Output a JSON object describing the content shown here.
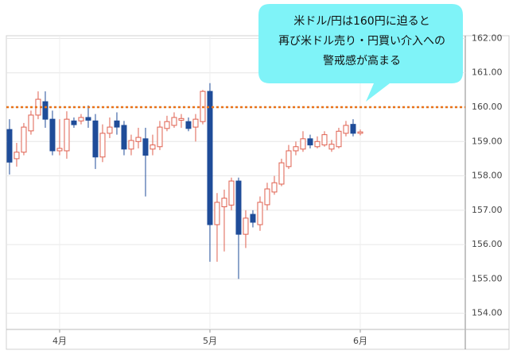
{
  "chart_data": {
    "type": "candlestick",
    "annotation": [
      "米ドル/円は160円に迫ると",
      "再び米ドル売り・円買い介入への",
      "警戒感が高まる"
    ],
    "open": [
      159.35,
      158.5,
      158.69,
      159.31,
      159.77,
      160.16,
      159.65,
      158.73,
      158.73,
      159.6,
      159.6,
      159.7,
      159.6,
      158.55,
      159.24,
      159.6,
      159.47,
      158.78,
      159.0,
      159.08,
      158.78,
      158.85,
      159.38,
      159.47,
      159.62,
      159.58,
      159.42,
      159.58,
      160.46,
      156.58,
      157.1,
      157.15,
      157.85,
      156.3,
      156.88,
      156.58,
      157.16,
      157.53,
      157.76,
      158.27,
      158.73,
      158.78,
      159.08,
      158.85,
      158.9,
      158.78,
      158.85,
      159.24,
      159.5,
      159.24
    ],
    "high": [
      159.65,
      158.96,
      159.54,
      159.9,
      160.46,
      160.46,
      159.9,
      159.65,
      159.88,
      159.7,
      159.8,
      160.05,
      159.8,
      159.5,
      159.7,
      159.85,
      159.6,
      159.2,
      159.4,
      159.4,
      159.2,
      159.6,
      159.75,
      159.85,
      159.8,
      159.7,
      159.8,
      160.5,
      160.7,
      157.5,
      157.6,
      157.95,
      157.95,
      157.0,
      157.0,
      157.4,
      157.8,
      158.0,
      158.5,
      158.9,
      159.0,
      159.3,
      159.2,
      159.15,
      159.3,
      159.05,
      159.4,
      159.6,
      159.65,
      159.35
    ],
    "low": [
      158.04,
      158.27,
      158.6,
      159.2,
      159.65,
      159.4,
      158.6,
      158.6,
      158.5,
      159.4,
      159.5,
      159.4,
      158.2,
      158.4,
      159.1,
      159.2,
      158.6,
      158.6,
      158.8,
      157.4,
      158.6,
      158.75,
      159.3,
      159.4,
      159.4,
      159.3,
      159.0,
      159.5,
      155.5,
      155.5,
      155.8,
      157.0,
      155.0,
      155.9,
      156.5,
      156.4,
      157.0,
      157.45,
      157.7,
      158.2,
      158.6,
      158.7,
      158.8,
      158.8,
      158.85,
      158.7,
      158.8,
      159.15,
      159.15,
      159.18
    ],
    "close": [
      158.4,
      158.69,
      159.42,
      159.77,
      160.23,
      159.65,
      158.73,
      158.8,
      159.65,
      159.49,
      159.7,
      159.62,
      158.55,
      159.24,
      159.42,
      159.42,
      158.78,
      159.03,
      159.12,
      158.6,
      158.9,
      159.42,
      159.58,
      159.7,
      159.67,
      159.38,
      159.65,
      160.46,
      156.58,
      157.23,
      157.35,
      157.85,
      156.3,
      156.77,
      156.65,
      157.23,
      157.62,
      157.8,
      158.38,
      158.73,
      158.85,
      159.08,
      158.9,
      159.0,
      159.2,
      158.92,
      159.3,
      159.47,
      159.24,
      159.28
    ],
    "up_color": "#e0604f",
    "down_color": "#1f4c99",
    "xlim": [
      -0.44,
      63.67
    ],
    "xticks": [
      {
        "value": 7,
        "label": "4月"
      },
      {
        "value": 28,
        "label": "5月"
      },
      {
        "value": 49,
        "label": "6月"
      }
    ],
    "ylim": [
      153.53,
      162.08
    ],
    "yticks": [
      {
        "value": 154,
        "label": "154.00"
      },
      {
        "value": 155,
        "label": "155.00"
      },
      {
        "value": 156,
        "label": "156.00"
      },
      {
        "value": 157,
        "label": "157.00"
      },
      {
        "value": 158,
        "label": "158.00"
      },
      {
        "value": 159,
        "label": "159.00"
      },
      {
        "value": 160,
        "label": "160.00"
      },
      {
        "value": 161,
        "label": "161.00"
      },
      {
        "value": 162,
        "label": "162.00"
      }
    ],
    "grid": true,
    "hline": {
      "value": 160,
      "color": "#e8731a"
    }
  }
}
